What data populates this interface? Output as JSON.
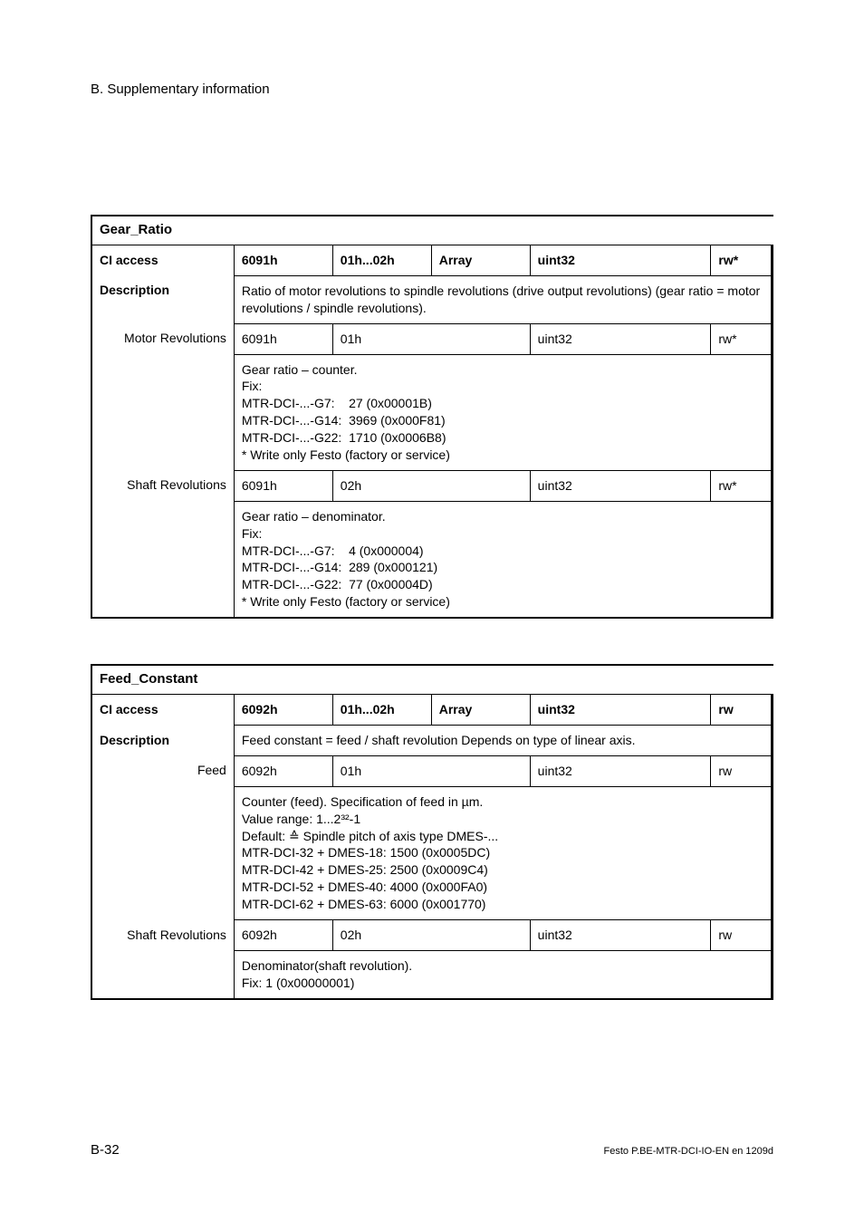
{
  "heading": "B.   Supplementary information",
  "footer": {
    "page": "B-32",
    "docid": "Festo  P.BE-MTR-DCI-IO-EN  en 1209d"
  },
  "blocks": [
    {
      "title": "Gear_Ratio",
      "header": {
        "label": "CI access",
        "index": "6091h",
        "sub": "01h...02h",
        "type": "Array",
        "dtype": "uint32",
        "access": "rw*"
      },
      "description_label": "Description",
      "description": "Ratio of motor revolutions to spindle revolutions (drive output revolutions) (gear ratio = motor revolutions / spindle revolutions).",
      "rows": [
        {
          "label": "Motor Revolutions",
          "index": "6091h",
          "sub": "01h",
          "dtype": "uint32",
          "access": "rw*",
          "detail": "Gear ratio – counter.\nFix:\nMTR-DCI-...-G7:    27 (0x00001B)\nMTR-DCI-...-G14:  3969 (0x000F81)\nMTR-DCI-...-G22:  1710 (0x0006B8)\n* Write only Festo (factory or service)"
        },
        {
          "label": "Shaft Revolutions",
          "index": "6091h",
          "sub": "02h",
          "dtype": "uint32",
          "access": "rw*",
          "detail": "Gear ratio – denominator.\nFix:\nMTR-DCI-...-G7:    4 (0x000004)\nMTR-DCI-...-G14:  289 (0x000121)\nMTR-DCI-...-G22:  77 (0x00004D)\n* Write only Festo (factory or service)"
        }
      ]
    },
    {
      "title": "Feed_Constant",
      "header": {
        "label": "CI access",
        "index": "6092h",
        "sub": "01h...02h",
        "type": "Array",
        "dtype": "uint32",
        "access": "rw"
      },
      "description_label": "Description",
      "description": "Feed constant = feed / shaft revolution Depends on type of linear axis.",
      "rows": [
        {
          "label": "Feed",
          "index": "6092h",
          "sub": "01h",
          "dtype": "uint32",
          "access": "rw",
          "detail": "Counter (feed). Specification of feed in µm.\nValue range: 1...2³²-1\nDefault: ≙ Spindle pitch of axis type DMES-...\nMTR-DCI-32 + DMES-18: 1500 (0x0005DC)\nMTR-DCI-42 + DMES-25: 2500 (0x0009C4)\nMTR-DCI-52 + DMES-40: 4000 (0x000FA0)\nMTR-DCI-62 + DMES-63: 6000 (0x001770)"
        },
        {
          "label": "Shaft Revolutions",
          "index": "6092h",
          "sub": "02h",
          "dtype": "uint32",
          "access": "rw",
          "detail": "Denominator(shaft revolution).\nFix: 1 (0x00000001)"
        }
      ]
    }
  ]
}
